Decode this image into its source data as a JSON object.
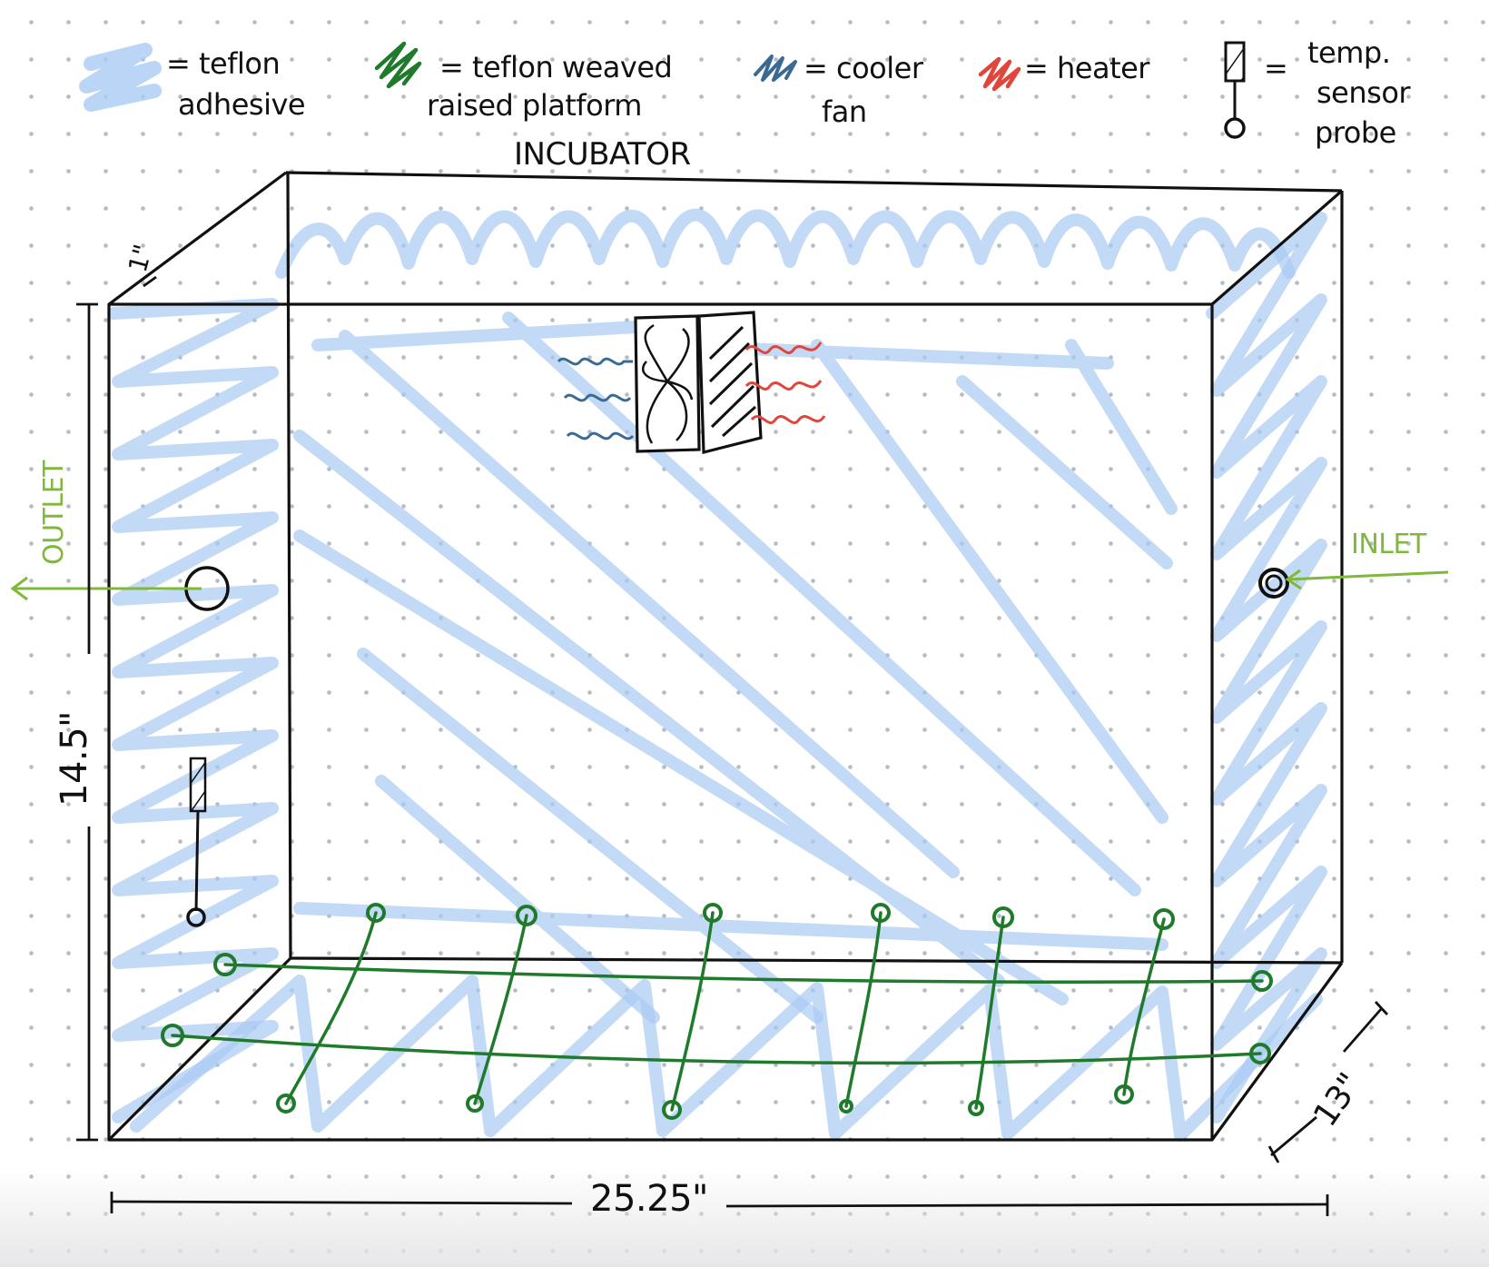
{
  "title": "INCUBATOR",
  "legend": [
    {
      "icon": "blue-scribble-icon",
      "text_lines": [
        "= teflon",
        "adhesive"
      ],
      "color": "#c6dcf7"
    },
    {
      "icon": "green-scribble-icon",
      "text_lines": [
        "= teflon weaved",
        "raised platform"
      ],
      "color": "#1f7a2b"
    },
    {
      "icon": "dark-blue-scribble-icon",
      "text_lines": [
        "= cooler",
        "fan"
      ],
      "color": "#3a6a93"
    },
    {
      "icon": "red-scribble-icon",
      "text_lines": [
        "= heater"
      ],
      "color": "#e0463b"
    },
    {
      "icon": "temp-probe-icon",
      "text_lines": [
        "temp.",
        "sensor",
        "probe"
      ],
      "prefix": "=",
      "color": "#111111"
    }
  ],
  "dimensions": {
    "wall": "1\"",
    "height": "14.5\"",
    "width": "25.25\"",
    "depth": "13\""
  },
  "ports": {
    "outlet": "OUTLET",
    "inlet": "INLET",
    "port_color": "#7fb83a"
  }
}
